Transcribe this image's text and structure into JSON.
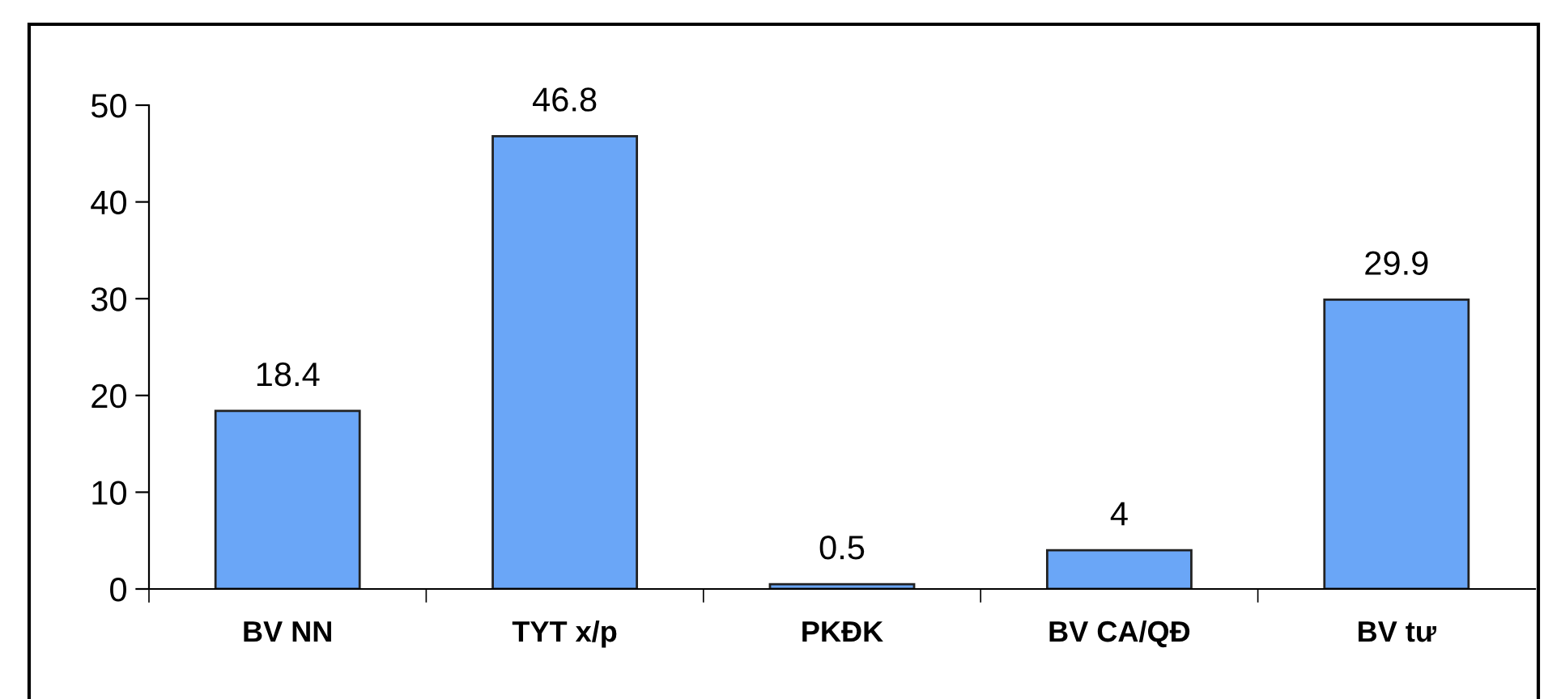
{
  "chart_data": {
    "type": "bar",
    "categories": [
      "BV NN",
      "TYT x/p",
      "PKĐK",
      "BV CA/QĐ",
      "BV tư"
    ],
    "values": [
      18.4,
      46.8,
      0.5,
      4,
      29.9
    ],
    "color": "#6aa6f7",
    "ylim": [
      0,
      50
    ],
    "yticks": [
      0,
      10,
      20,
      30,
      40,
      50
    ],
    "grid": false,
    "legend": false,
    "data_labels": true
  }
}
